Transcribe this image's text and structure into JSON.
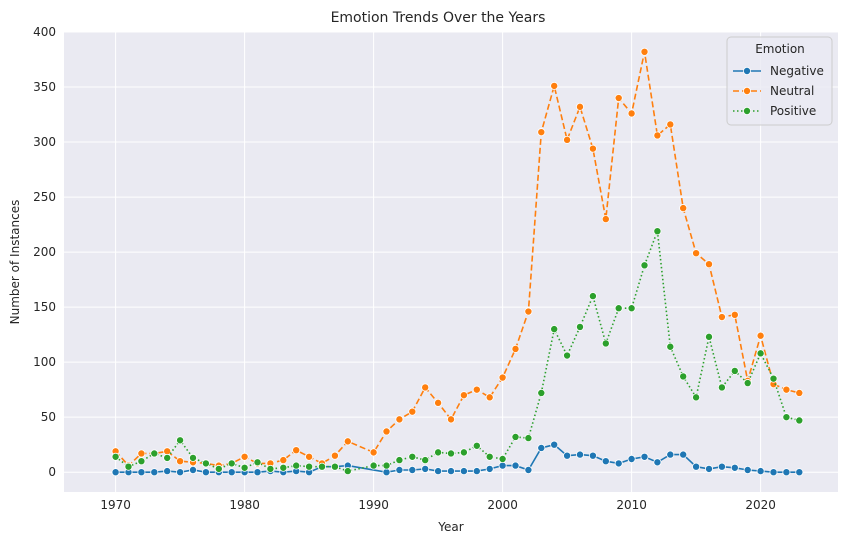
{
  "chart_data": {
    "type": "line",
    "title": "Emotion Trends Over the Years",
    "xlabel": "Year",
    "ylabel": "Number of Instances",
    "xlim": [
      1966,
      2026
    ],
    "ylim": [
      -18,
      400
    ],
    "xticks": [
      1970,
      1980,
      1990,
      2000,
      2010,
      2020
    ],
    "yticks": [
      0,
      50,
      100,
      150,
      200,
      250,
      300,
      350,
      400
    ],
    "grid": true,
    "legend": {
      "title": "Emotion",
      "placement": "top-right"
    },
    "series": [
      {
        "name": "Negative",
        "color": "#1f77b4",
        "dash": "solid",
        "points": [
          [
            1970,
            0
          ],
          [
            1971,
            0
          ],
          [
            1972,
            0
          ],
          [
            1973,
            0
          ],
          [
            1974,
            1
          ],
          [
            1975,
            0
          ],
          [
            1976,
            2
          ],
          [
            1977,
            0
          ],
          [
            1978,
            0
          ],
          [
            1979,
            0
          ],
          [
            1980,
            0
          ],
          [
            1981,
            0
          ],
          [
            1982,
            1
          ],
          [
            1983,
            0
          ],
          [
            1984,
            1
          ],
          [
            1985,
            0
          ],
          [
            1986,
            5
          ],
          [
            1987,
            5
          ],
          [
            1988,
            6
          ],
          [
            1991,
            0
          ],
          [
            1992,
            2
          ],
          [
            1993,
            2
          ],
          [
            1994,
            3
          ],
          [
            1995,
            1
          ],
          [
            1996,
            1
          ],
          [
            1997,
            1
          ],
          [
            1998,
            1
          ],
          [
            1999,
            3
          ],
          [
            2000,
            6
          ],
          [
            2001,
            6
          ],
          [
            2002,
            2
          ],
          [
            2003,
            22
          ],
          [
            2004,
            25
          ],
          [
            2005,
            15
          ],
          [
            2006,
            16
          ],
          [
            2007,
            15
          ],
          [
            2008,
            10
          ],
          [
            2009,
            8
          ],
          [
            2010,
            12
          ],
          [
            2011,
            14
          ],
          [
            2012,
            9
          ],
          [
            2013,
            16
          ],
          [
            2014,
            16
          ],
          [
            2015,
            5
          ],
          [
            2016,
            3
          ],
          [
            2017,
            5
          ],
          [
            2018,
            4
          ],
          [
            2019,
            2
          ],
          [
            2020,
            1
          ],
          [
            2021,
            0
          ],
          [
            2022,
            0
          ],
          [
            2023,
            0
          ]
        ]
      },
      {
        "name": "Neutral",
        "color": "#ff7f0e",
        "dash": "dashed",
        "points": [
          [
            1970,
            19
          ],
          [
            1971,
            6
          ],
          [
            1972,
            17
          ],
          [
            1973,
            17
          ],
          [
            1974,
            19
          ],
          [
            1975,
            10
          ],
          [
            1976,
            9
          ],
          [
            1977,
            8
          ],
          [
            1978,
            6
          ],
          [
            1979,
            8
          ],
          [
            1980,
            14
          ],
          [
            1981,
            8
          ],
          [
            1982,
            8
          ],
          [
            1983,
            11
          ],
          [
            1984,
            20
          ],
          [
            1985,
            14
          ],
          [
            1986,
            8
          ],
          [
            1987,
            15
          ],
          [
            1988,
            28
          ],
          [
            1990,
            18
          ],
          [
            1991,
            37
          ],
          [
            1992,
            48
          ],
          [
            1993,
            55
          ],
          [
            1994,
            77
          ],
          [
            1995,
            63
          ],
          [
            1996,
            48
          ],
          [
            1997,
            70
          ],
          [
            1998,
            75
          ],
          [
            1999,
            68
          ],
          [
            2000,
            86
          ],
          [
            2001,
            112
          ],
          [
            2002,
            146
          ],
          [
            2003,
            309
          ],
          [
            2004,
            351
          ],
          [
            2005,
            302
          ],
          [
            2006,
            332
          ],
          [
            2007,
            294
          ],
          [
            2008,
            230
          ],
          [
            2009,
            340
          ],
          [
            2010,
            326
          ],
          [
            2011,
            382
          ],
          [
            2012,
            306
          ],
          [
            2013,
            316
          ],
          [
            2014,
            240
          ],
          [
            2015,
            199
          ],
          [
            2016,
            189
          ],
          [
            2017,
            141
          ],
          [
            2018,
            143
          ],
          [
            2019,
            83
          ],
          [
            2020,
            124
          ],
          [
            2021,
            80
          ],
          [
            2022,
            75
          ],
          [
            2023,
            72
          ]
        ]
      },
      {
        "name": "Positive",
        "color": "#2ca02c",
        "dash": "dotted",
        "points": [
          [
            1970,
            14
          ],
          [
            1971,
            5
          ],
          [
            1972,
            10
          ],
          [
            1973,
            17
          ],
          [
            1974,
            13
          ],
          [
            1975,
            29
          ],
          [
            1976,
            13
          ],
          [
            1977,
            8
          ],
          [
            1978,
            3
          ],
          [
            1979,
            8
          ],
          [
            1980,
            4
          ],
          [
            1981,
            9
          ],
          [
            1982,
            3
          ],
          [
            1983,
            4
          ],
          [
            1984,
            6
          ],
          [
            1985,
            5
          ],
          [
            1986,
            5
          ],
          [
            1987,
            5
          ],
          [
            1988,
            1
          ],
          [
            1990,
            6
          ],
          [
            1991,
            6
          ],
          [
            1992,
            11
          ],
          [
            1993,
            14
          ],
          [
            1994,
            11
          ],
          [
            1995,
            18
          ],
          [
            1996,
            17
          ],
          [
            1997,
            18
          ],
          [
            1998,
            24
          ],
          [
            1999,
            14
          ],
          [
            2000,
            12
          ],
          [
            2001,
            32
          ],
          [
            2002,
            31
          ],
          [
            2003,
            72
          ],
          [
            2004,
            130
          ],
          [
            2005,
            106
          ],
          [
            2006,
            132
          ],
          [
            2007,
            160
          ],
          [
            2008,
            117
          ],
          [
            2009,
            149
          ],
          [
            2010,
            149
          ],
          [
            2011,
            188
          ],
          [
            2012,
            219
          ],
          [
            2013,
            114
          ],
          [
            2014,
            87
          ],
          [
            2015,
            68
          ],
          [
            2016,
            123
          ],
          [
            2017,
            77
          ],
          [
            2018,
            92
          ],
          [
            2019,
            81
          ],
          [
            2020,
            108
          ],
          [
            2021,
            85
          ],
          [
            2022,
            50
          ],
          [
            2023,
            47
          ]
        ]
      }
    ]
  }
}
